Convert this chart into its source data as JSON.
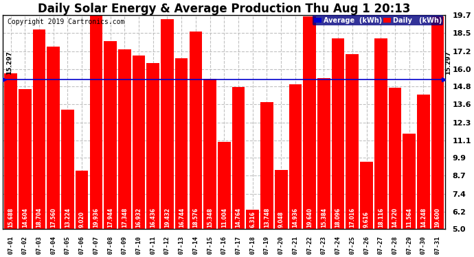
{
  "title": "Daily Solar Energy & Average Production Thu Aug 1 20:13",
  "copyright": "Copyright 2019 Cartronics.com",
  "average_label": "15.297",
  "average_value": 15.297,
  "bar_color": "#FF0000",
  "average_line_color": "#0000CD",
  "background_color": "#FFFFFF",
  "plot_background": "#FFFFFF",
  "grid_color": "#BBBBBB",
  "categories": [
    "07-01",
    "07-02",
    "07-03",
    "07-04",
    "07-05",
    "07-06",
    "07-07",
    "07-08",
    "07-09",
    "07-10",
    "07-11",
    "07-12",
    "07-13",
    "07-14",
    "07-15",
    "07-16",
    "07-17",
    "07-18",
    "07-19",
    "07-20",
    "07-21",
    "07-22",
    "07-23",
    "07-24",
    "07-25",
    "07-26",
    "07-27",
    "07-28",
    "07-29",
    "07-30",
    "07-31"
  ],
  "values": [
    15.688,
    14.604,
    18.704,
    17.56,
    13.224,
    9.02,
    19.936,
    17.944,
    17.348,
    16.932,
    16.436,
    19.432,
    16.744,
    18.576,
    15.348,
    11.004,
    14.764,
    6.316,
    13.748,
    9.048,
    14.936,
    19.64,
    15.384,
    18.096,
    17.016,
    9.616,
    18.116,
    14.72,
    11.564,
    14.248,
    19.6
  ],
  "ylim_min": 5.0,
  "ylim_max": 19.7,
  "yticks": [
    5.0,
    6.2,
    7.4,
    8.7,
    9.9,
    11.1,
    12.3,
    13.6,
    14.8,
    16.0,
    17.2,
    18.5,
    19.7
  ],
  "legend_avg_color": "#0000CD",
  "legend_daily_color": "#FF0000",
  "legend_avg_text": "Average  (kWh)",
  "legend_daily_text": "Daily   (kWh)",
  "title_fontsize": 12,
  "bar_label_fontsize": 5.5,
  "tick_fontsize": 8,
  "copyright_fontsize": 7
}
